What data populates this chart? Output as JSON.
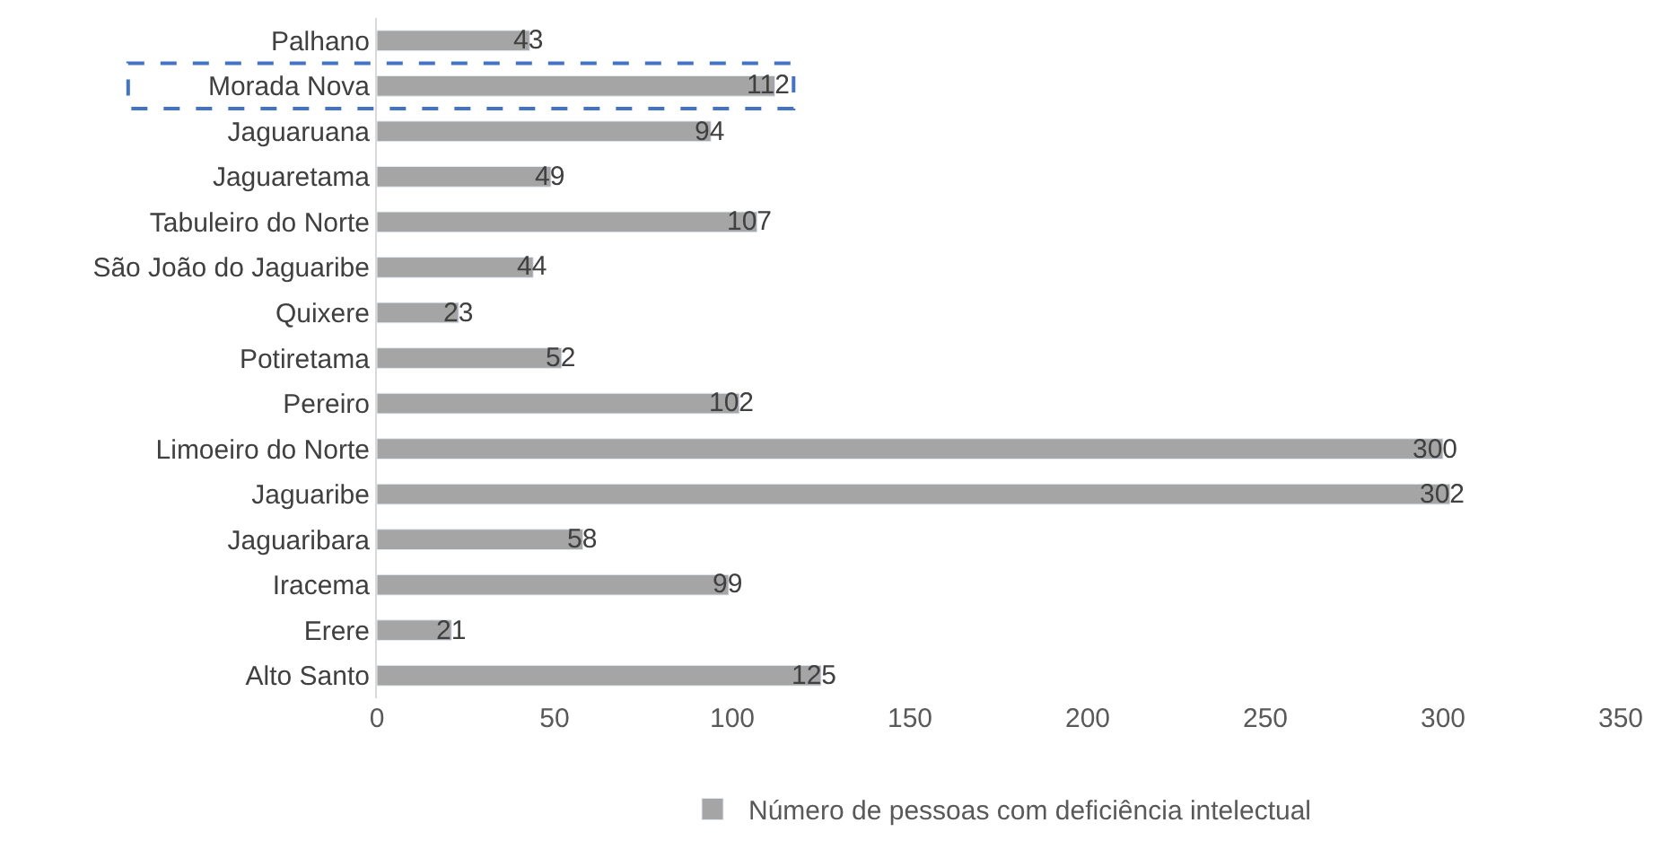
{
  "chart_data": {
    "type": "bar",
    "orientation": "horizontal",
    "categories": [
      "Palhano",
      "Morada Nova",
      "Jaguaruana",
      "Jaguaretama",
      "Tabuleiro do Norte",
      "São João do Jaguaribe",
      "Quixere",
      "Potiretama",
      "Pereiro",
      "Limoeiro do Norte",
      "Jaguaribe",
      "Jaguaribara",
      "Iracema",
      "Erere",
      "Alto Santo"
    ],
    "series": [
      {
        "name": "Número de pessoas com deficiência intelectual",
        "color": "#a5a5a5",
        "values": [
          43,
          112,
          94,
          49,
          107,
          44,
          23,
          52,
          102,
          300,
          302,
          58,
          99,
          21,
          125
        ]
      }
    ],
    "xlim": [
      0,
      350
    ],
    "xticks": [
      0,
      50,
      100,
      150,
      200,
      250,
      300,
      350
    ],
    "data_labels": true,
    "legend": "bottom"
  }
}
